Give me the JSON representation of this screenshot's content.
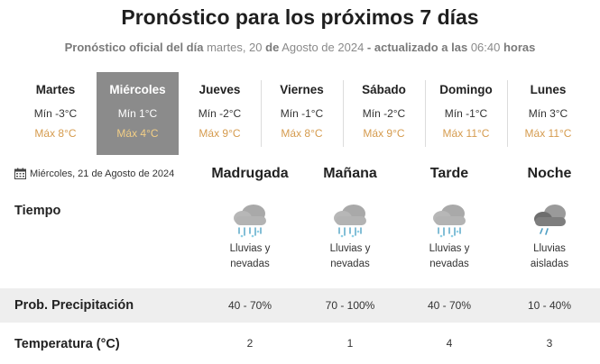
{
  "title": "Pronóstico para los próximos 7 días",
  "subtitle": {
    "prefix": "Pronóstico oficial del día",
    "weekday": "martes, 20",
    "de1": "de",
    "month_year": "Agosto de 2024",
    "updated": "- actualizado a las",
    "time": "06:40",
    "suffix": "horas"
  },
  "days": [
    {
      "name": "Martes",
      "min": "Mín -3°C",
      "max": "Máx 8°C"
    },
    {
      "name": "Miércoles",
      "min": "Mín 1°C",
      "max": "Máx 4°C"
    },
    {
      "name": "Jueves",
      "min": "Mín -2°C",
      "max": "Máx 9°C"
    },
    {
      "name": "Viernes",
      "min": "Mín -1°C",
      "max": "Máx 8°C"
    },
    {
      "name": "Sábado",
      "min": "Mín -2°C",
      "max": "Máx 9°C"
    },
    {
      "name": "Domingo",
      "min": "Mín -1°C",
      "max": "Máx 11°C"
    },
    {
      "name": "Lunes",
      "min": "Mín 3°C",
      "max": "Máx 11°C"
    }
  ],
  "selected_day": "Miércoles",
  "date_label": "Miércoles, 21 de Agosto de 2024",
  "periods": [
    "Madrugada",
    "Mañana",
    "Tarde",
    "Noche"
  ],
  "rows": {
    "weather": "Tiempo",
    "precip": "Prob. Precipitación",
    "temp": "Temperatura (°C)"
  },
  "forecast": [
    {
      "icon": "rain-snow-cloud-icon",
      "desc1": "Lluvias y",
      "desc2": "nevadas",
      "precip": "40 - 70%",
      "temp": "2"
    },
    {
      "icon": "rain-snow-cloud-icon",
      "desc1": "Lluvias y",
      "desc2": "nevadas",
      "precip": "70 - 100%",
      "temp": "1"
    },
    {
      "icon": "rain-snow-cloud-icon",
      "desc1": "Lluvias y",
      "desc2": "nevadas",
      "precip": "40 - 70%",
      "temp": "4"
    },
    {
      "icon": "isolated-rain-cloud-icon",
      "desc1": "Lluvias",
      "desc2": "aisladas",
      "precip": "10 - 40%",
      "temp": "3"
    }
  ],
  "colors": {
    "selected_bg": "#8b8b8b",
    "max_temp": "#d59b4e",
    "band": "#eeeeee"
  }
}
